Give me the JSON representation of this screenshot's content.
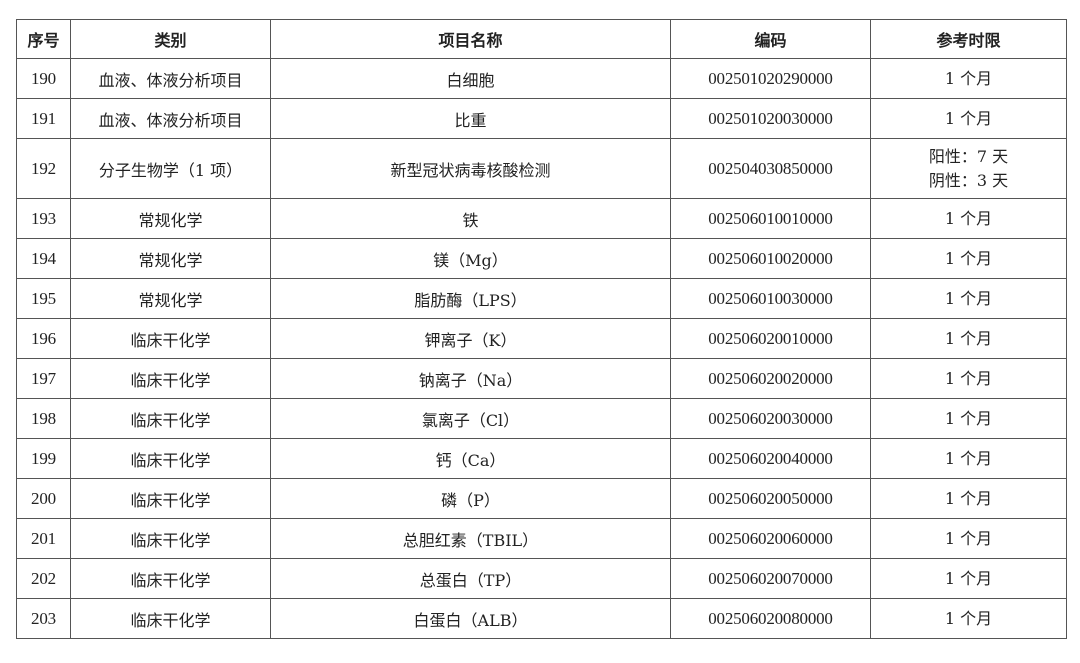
{
  "headers": [
    "序号",
    "类别",
    "项目名称",
    "编码",
    "参考时限"
  ],
  "rows": [
    {
      "no": "190",
      "category": "血液、体液分析项目",
      "name": "白细胞",
      "code": "002501020290000",
      "limit": [
        "1 个月"
      ]
    },
    {
      "no": "191",
      "category": "血液、体液分析项目",
      "name": "比重",
      "code": "002501020030000",
      "limit": [
        "1 个月"
      ]
    },
    {
      "no": "192",
      "category": "分子生物学（1 项）",
      "name": "新型冠状病毒核酸检测",
      "code": "002504030850000",
      "limit": [
        "阳性：7 天",
        "阴性：3 天"
      ]
    },
    {
      "no": "193",
      "category": "常规化学",
      "name": "铁",
      "code": "002506010010000",
      "limit": [
        "1 个月"
      ]
    },
    {
      "no": "194",
      "category": "常规化学",
      "name": "镁（Mg）",
      "code": "002506010020000",
      "limit": [
        "1 个月"
      ]
    },
    {
      "no": "195",
      "category": "常规化学",
      "name": "脂肪酶（LPS）",
      "code": "002506010030000",
      "limit": [
        "1 个月"
      ]
    },
    {
      "no": "196",
      "category": "临床干化学",
      "name": "钾离子（K）",
      "code": "002506020010000",
      "limit": [
        "1 个月"
      ]
    },
    {
      "no": "197",
      "category": "临床干化学",
      "name": "钠离子（Na）",
      "code": "002506020020000",
      "limit": [
        "1 个月"
      ]
    },
    {
      "no": "198",
      "category": "临床干化学",
      "name": "氯离子（Cl）",
      "code": "002506020030000",
      "limit": [
        "1 个月"
      ]
    },
    {
      "no": "199",
      "category": "临床干化学",
      "name": "钙（Ca）",
      "code": "002506020040000",
      "limit": [
        "1 个月"
      ]
    },
    {
      "no": "200",
      "category": "临床干化学",
      "name": "磷（P）",
      "code": "002506020050000",
      "limit": [
        "1 个月"
      ]
    },
    {
      "no": "201",
      "category": "临床干化学",
      "name": "总胆红素（TBIL）",
      "code": "002506020060000",
      "limit": [
        "1 个月"
      ]
    },
    {
      "no": "202",
      "category": "临床干化学",
      "name": "总蛋白（TP）",
      "code": "002506020070000",
      "limit": [
        "1 个月"
      ]
    },
    {
      "no": "203",
      "category": "临床干化学",
      "name": "白蛋白（ALB）",
      "code": "002506020080000",
      "limit": [
        "1 个月"
      ]
    }
  ]
}
